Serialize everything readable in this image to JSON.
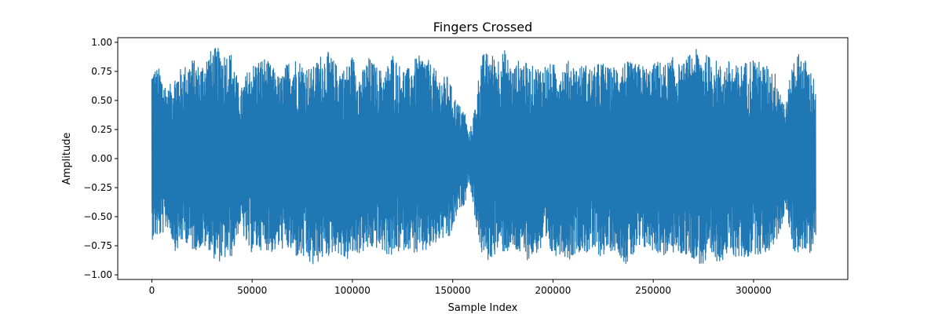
{
  "chart_data": {
    "type": "line",
    "title": "Fingers Crossed",
    "xlabel": "Sample Index",
    "ylabel": "Amplitude",
    "xlim": [
      -17000,
      347000
    ],
    "ylim": [
      -1.04,
      1.04
    ],
    "x_ticks": [
      0,
      50000,
      100000,
      150000,
      200000,
      250000,
      300000
    ],
    "x_tick_labels": [
      "0",
      "50000",
      "100000",
      "150000",
      "200000",
      "250000",
      "300000"
    ],
    "y_ticks": [
      1.0,
      0.75,
      0.5,
      0.25,
      0.0,
      -0.25,
      -0.5,
      -0.75,
      -1.0
    ],
    "y_tick_labels": [
      "1.00",
      "0.75",
      "0.50",
      "0.25",
      "0.00",
      "−0.25",
      "−0.50",
      "−0.75",
      "−1.00"
    ],
    "grid": false,
    "legend": "none",
    "series": [
      {
        "color": "#1f77b4",
        "x_start": 0,
        "x_end": 331000,
        "envelope_x": [
          0,
          4000,
          8000,
          12000,
          16000,
          20000,
          24000,
          28000,
          32000,
          36000,
          40000,
          44000,
          48000,
          52000,
          56000,
          60000,
          64000,
          68000,
          72000,
          76000,
          80000,
          84000,
          88000,
          92000,
          96000,
          100000,
          104000,
          108000,
          112000,
          116000,
          120000,
          124000,
          128000,
          132000,
          136000,
          140000,
          144000,
          148000,
          150000,
          152000,
          154000,
          156000,
          158000,
          160000,
          162000,
          164000,
          168000,
          172000,
          176000,
          180000,
          184000,
          188000,
          192000,
          196000,
          200000,
          204000,
          208000,
          212000,
          216000,
          220000,
          224000,
          228000,
          232000,
          236000,
          240000,
          244000,
          248000,
          252000,
          256000,
          260000,
          264000,
          268000,
          272000,
          276000,
          280000,
          284000,
          288000,
          292000,
          296000,
          300000,
          304000,
          308000,
          312000,
          316000,
          320000,
          324000,
          328000,
          331000
        ],
        "envelope_max": [
          0.8,
          0.78,
          0.6,
          0.75,
          0.8,
          0.87,
          0.8,
          0.92,
          0.96,
          0.93,
          0.92,
          0.58,
          0.78,
          0.85,
          0.88,
          0.8,
          0.7,
          0.85,
          0.88,
          0.82,
          0.78,
          0.9,
          0.92,
          0.82,
          0.78,
          0.9,
          0.72,
          0.88,
          0.8,
          0.75,
          0.92,
          0.8,
          0.78,
          0.88,
          0.9,
          0.8,
          0.7,
          0.72,
          0.58,
          0.5,
          0.45,
          0.42,
          0.2,
          0.35,
          0.55,
          0.9,
          0.92,
          0.88,
          0.94,
          0.78,
          0.88,
          0.8,
          0.8,
          0.82,
          0.82,
          0.8,
          0.85,
          0.8,
          0.82,
          0.78,
          0.85,
          0.78,
          0.82,
          0.85,
          0.82,
          0.82,
          0.78,
          0.85,
          0.82,
          0.88,
          0.8,
          0.9,
          0.95,
          0.9,
          0.88,
          0.8,
          0.85,
          0.8,
          0.84,
          0.88,
          0.82,
          0.8,
          0.72,
          0.45,
          0.9,
          0.92,
          0.78,
          0.68
        ],
        "envelope_min": [
          -0.7,
          -0.68,
          -0.6,
          -0.82,
          -0.7,
          -0.8,
          -0.78,
          -0.78,
          -0.9,
          -0.88,
          -0.85,
          -0.58,
          -0.82,
          -0.8,
          -0.78,
          -0.82,
          -0.78,
          -0.8,
          -0.86,
          -0.88,
          -0.95,
          -0.88,
          -0.85,
          -0.8,
          -0.9,
          -0.85,
          -0.82,
          -0.8,
          -0.78,
          -0.82,
          -0.86,
          -0.8,
          -0.78,
          -0.84,
          -0.82,
          -0.78,
          -0.7,
          -0.72,
          -0.62,
          -0.5,
          -0.42,
          -0.4,
          -0.18,
          -0.4,
          -0.62,
          -0.82,
          -0.9,
          -0.8,
          -0.82,
          -0.8,
          -0.85,
          -0.88,
          -0.82,
          -0.8,
          -0.85,
          -0.82,
          -0.88,
          -0.8,
          -0.82,
          -0.82,
          -0.85,
          -0.8,
          -0.8,
          -0.92,
          -0.86,
          -0.8,
          -0.78,
          -0.82,
          -0.85,
          -0.82,
          -0.84,
          -0.84,
          -0.9,
          -0.96,
          -0.9,
          -0.88,
          -0.84,
          -0.86,
          -0.88,
          -0.82,
          -0.84,
          -0.8,
          -0.7,
          -0.45,
          -0.82,
          -0.8,
          -0.84,
          -0.66
        ]
      }
    ]
  }
}
